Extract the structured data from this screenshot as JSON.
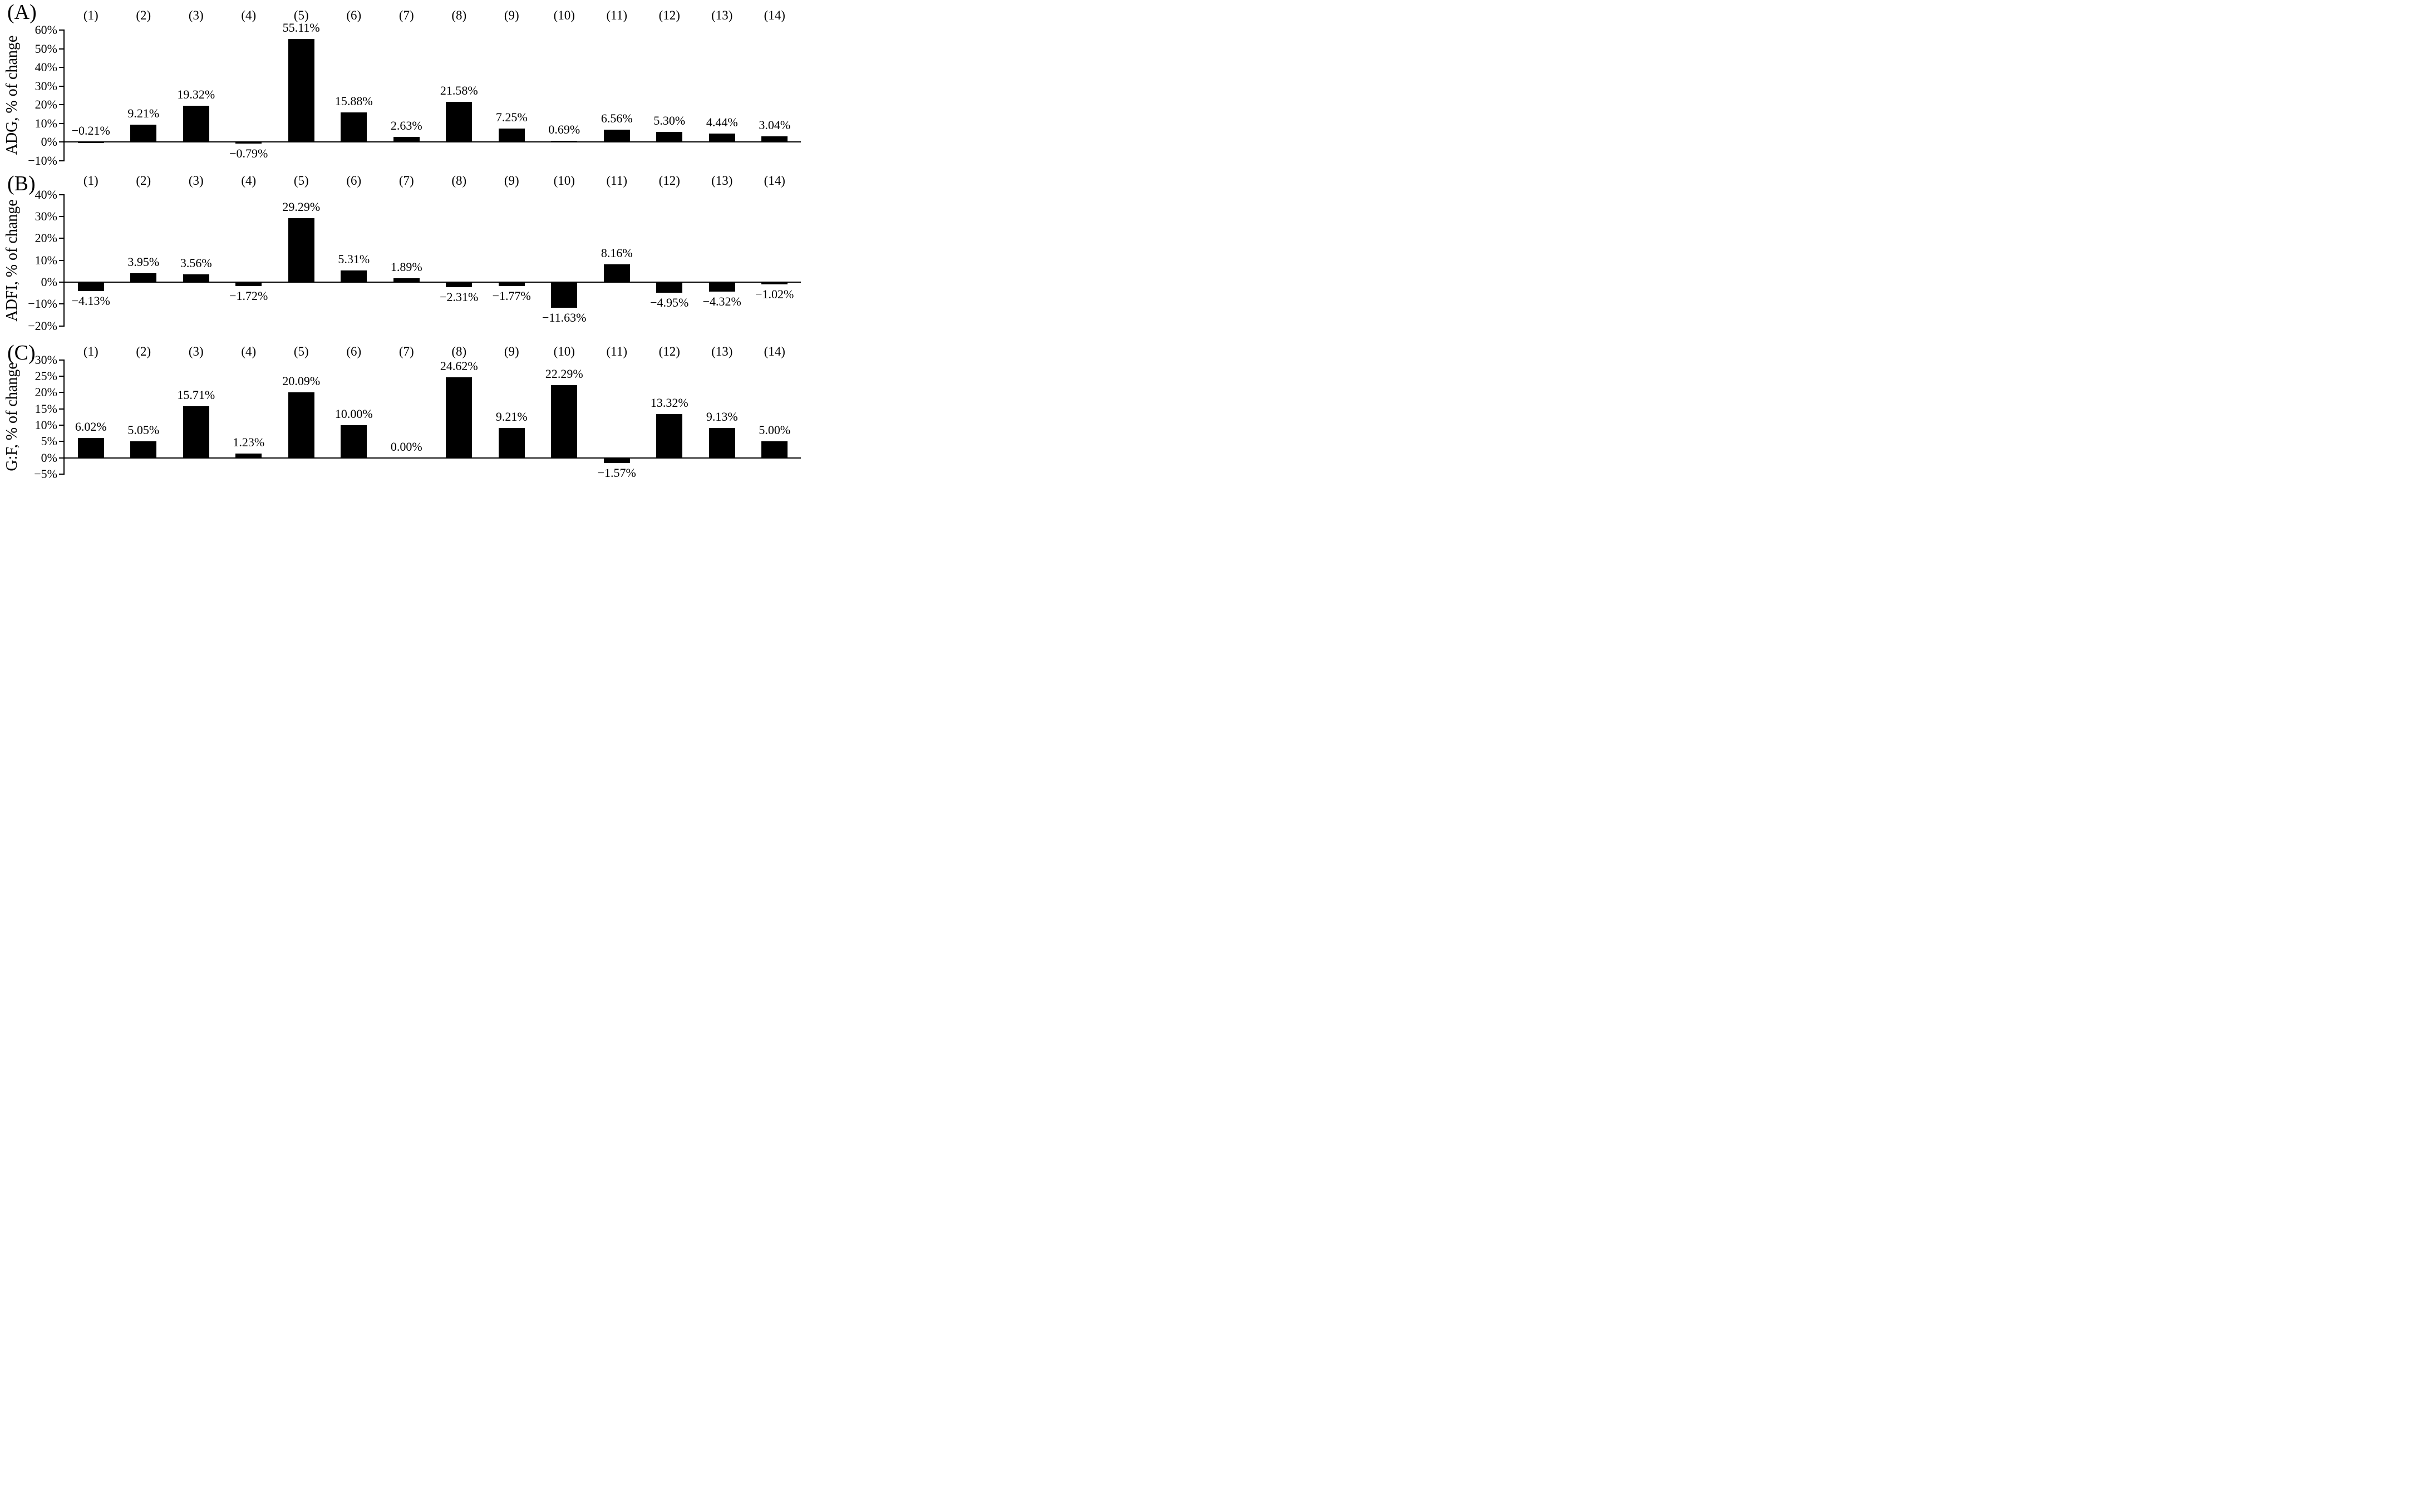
{
  "chart_data": [
    {
      "type": "bar",
      "panel_label": "(A)",
      "title": "",
      "xlabel": "",
      "ylabel": "ADG, % of change",
      "categories": [
        "(1)",
        "(2)",
        "(3)",
        "(4)",
        "(5)",
        "(6)",
        "(7)",
        "(8)",
        "(9)",
        "(10)",
        "(11)",
        "(12)",
        "(13)",
        "(14)"
      ],
      "values": [
        -0.21,
        9.21,
        19.32,
        -0.79,
        55.11,
        15.88,
        2.63,
        21.58,
        7.25,
        0.69,
        6.56,
        5.3,
        4.44,
        3.04
      ],
      "value_labels": [
        "−0.21%",
        "9.21%",
        "19.32%",
        "−0.79%",
        "55.11%",
        "15.88%",
        "2.63%",
        "21.58%",
        "7.25%",
        "0.69%",
        "6.56%",
        "5.30%",
        "4.44%",
        "3.04%"
      ],
      "ylim": [
        -10,
        60
      ],
      "ytick_step": 10,
      "ytick_labels": [
        "60%",
        "50%",
        "40%",
        "30%",
        "20%",
        "10%",
        "0%",
        "−10%"
      ],
      "bar_color": "#000000",
      "axis_color": "#000000",
      "grid": false,
      "legend": "none",
      "label_side_overrides": {
        "0": "above-baseline"
      }
    },
    {
      "type": "bar",
      "panel_label": "(B)",
      "title": "",
      "xlabel": "",
      "ylabel": "ADFI, % of change",
      "categories": [
        "(1)",
        "(2)",
        "(3)",
        "(4)",
        "(5)",
        "(6)",
        "(7)",
        "(8)",
        "(9)",
        "(10)",
        "(11)",
        "(12)",
        "(13)",
        "(14)"
      ],
      "values": [
        -4.13,
        3.95,
        3.56,
        -1.72,
        29.29,
        5.31,
        1.89,
        -2.31,
        -1.77,
        -11.63,
        8.16,
        -4.95,
        -4.32,
        -1.02
      ],
      "value_labels": [
        "−4.13%",
        "3.95%",
        "3.56%",
        "−1.72%",
        "29.29%",
        "5.31%",
        "1.89%",
        "−2.31%",
        "−1.77%",
        "−11.63%",
        "8.16%",
        "−4.95%",
        "−4.32%",
        "−1.02%"
      ],
      "ylim": [
        -20,
        40
      ],
      "ytick_step": 10,
      "ytick_labels": [
        "40%",
        "30%",
        "20%",
        "10%",
        "0%",
        "−10%",
        "−20%"
      ],
      "bar_color": "#000000",
      "axis_color": "#000000",
      "grid": false,
      "legend": "none",
      "label_side_overrides": {}
    },
    {
      "type": "bar",
      "panel_label": "(C)",
      "title": "",
      "xlabel": "",
      "ylabel": "G:F, % of change",
      "categories": [
        "(1)",
        "(2)",
        "(3)",
        "(4)",
        "(5)",
        "(6)",
        "(7)",
        "(8)",
        "(9)",
        "(10)",
        "(11)",
        "(12)",
        "(13)",
        "(14)"
      ],
      "values": [
        6.02,
        5.05,
        15.71,
        1.23,
        20.09,
        10.0,
        0.0,
        24.62,
        9.21,
        22.29,
        -1.57,
        13.32,
        9.13,
        5.0
      ],
      "value_labels": [
        "6.02%",
        "5.05%",
        "15.71%",
        "1.23%",
        "20.09%",
        "10.00%",
        "0.00%",
        "24.62%",
        "9.21%",
        "22.29%",
        "−1.57%",
        "13.32%",
        "9.13%",
        "5.00%"
      ],
      "ylim": [
        -5,
        30
      ],
      "ytick_step": 5,
      "ytick_labels": [
        "30%",
        "25%",
        "20%",
        "15%",
        "10%",
        "5%",
        "0%",
        "−5%"
      ],
      "bar_color": "#000000",
      "axis_color": "#000000",
      "grid": false,
      "legend": "none",
      "label_side_overrides": {}
    }
  ]
}
